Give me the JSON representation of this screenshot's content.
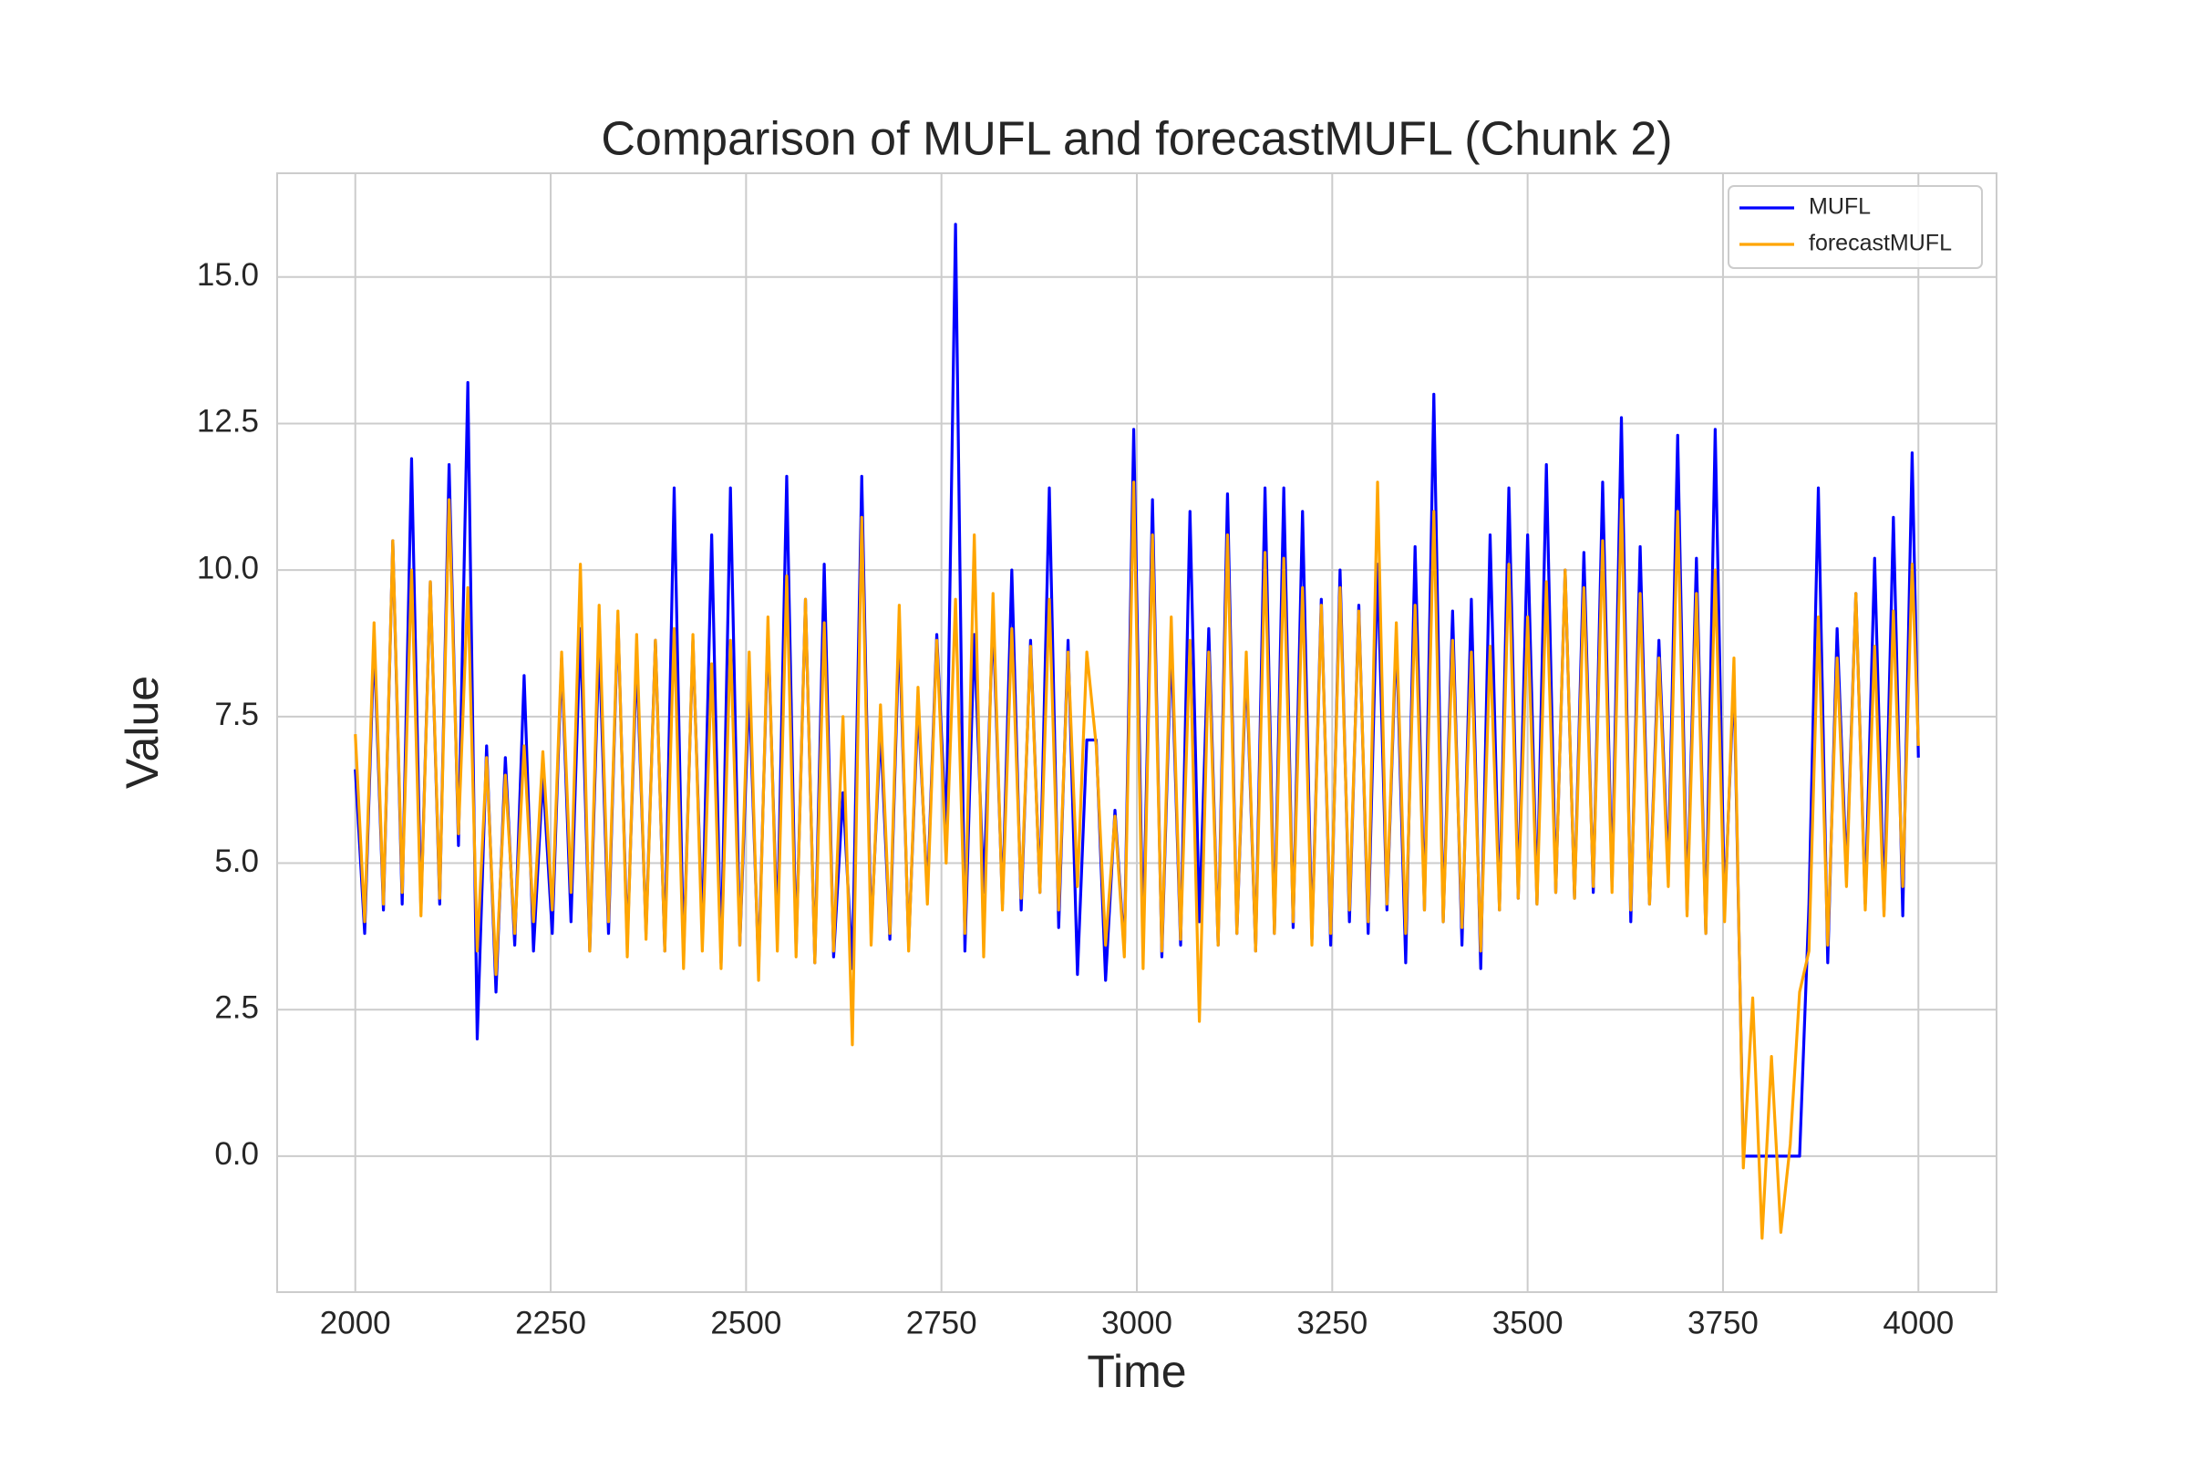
{
  "chart_data": {
    "type": "line",
    "title": "Comparison of MUFL and forecastMUFL (Chunk 2)",
    "x_label": "Time",
    "y_label": "Value",
    "x": [
      2000,
      2012,
      2024,
      2036,
      2048,
      2060,
      2072,
      2084,
      2096,
      2108,
      2120,
      2132,
      2144,
      2156,
      2168,
      2180,
      2192,
      2204,
      2216,
      2228,
      2240,
      2252,
      2264,
      2276,
      2288,
      2300,
      2312,
      2324,
      2336,
      2348,
      2360,
      2372,
      2384,
      2396,
      2408,
      2420,
      2432,
      2444,
      2456,
      2468,
      2480,
      2492,
      2504,
      2516,
      2528,
      2540,
      2552,
      2564,
      2576,
      2588,
      2600,
      2612,
      2624,
      2636,
      2648,
      2660,
      2672,
      2684,
      2696,
      2708,
      2720,
      2732,
      2744,
      2756,
      2768,
      2780,
      2792,
      2804,
      2816,
      2828,
      2840,
      2852,
      2864,
      2876,
      2888,
      2900,
      2912,
      2924,
      2936,
      2948,
      2960,
      2972,
      2984,
      2996,
      3008,
      3020,
      3032,
      3044,
      3056,
      3068,
      3080,
      3092,
      3104,
      3116,
      3128,
      3140,
      3152,
      3164,
      3176,
      3188,
      3200,
      3212,
      3224,
      3236,
      3248,
      3260,
      3272,
      3284,
      3296,
      3308,
      3320,
      3332,
      3344,
      3356,
      3368,
      3380,
      3392,
      3404,
      3416,
      3428,
      3440,
      3452,
      3464,
      3476,
      3488,
      3500,
      3512,
      3524,
      3536,
      3548,
      3560,
      3572,
      3584,
      3596,
      3608,
      3620,
      3632,
      3644,
      3656,
      3668,
      3680,
      3692,
      3704,
      3716,
      3728,
      3740,
      3752,
      3764,
      3776,
      3788,
      3800,
      3812,
      3824,
      3836,
      3848,
      3860,
      3872,
      3884,
      3896,
      3908,
      3920,
      3932,
      3944,
      3956,
      3968,
      3980,
      3992,
      4000
    ],
    "series": [
      {
        "name": "MUFL",
        "color": "#0000ff",
        "values": [
          6.6,
          3.8,
          8.8,
          4.2,
          10.5,
          4.3,
          11.9,
          4.2,
          9.8,
          4.3,
          11.8,
          5.3,
          13.2,
          2.0,
          7.0,
          2.8,
          6.8,
          3.6,
          8.2,
          3.5,
          6.5,
          3.8,
          8.5,
          4.0,
          9.0,
          3.5,
          8.8,
          3.8,
          9.2,
          3.6,
          8.5,
          3.8,
          8.8,
          3.5,
          11.4,
          3.4,
          8.8,
          3.8,
          10.6,
          3.3,
          11.4,
          3.6,
          8.0,
          3.2,
          9.0,
          3.8,
          11.6,
          3.5,
          9.5,
          3.3,
          10.1,
          3.4,
          6.2,
          3.2,
          11.6,
          3.8,
          7.3,
          3.7,
          9.0,
          3.6,
          7.7,
          4.5,
          8.9,
          5.5,
          15.9,
          3.5,
          8.9,
          4.5,
          9.2,
          4.3,
          10.0,
          4.2,
          8.8,
          4.5,
          11.4,
          3.9,
          8.8,
          3.1,
          7.1,
          7.1,
          3.0,
          5.9,
          3.5,
          12.4,
          3.6,
          11.2,
          3.4,
          8.8,
          3.6,
          11.0,
          4.0,
          9.0,
          3.6,
          11.3,
          3.8,
          8.4,
          3.5,
          11.4,
          3.8,
          11.4,
          3.9,
          11.0,
          3.7,
          9.5,
          3.6,
          10.0,
          4.0,
          9.4,
          3.8,
          10.1,
          4.2,
          8.9,
          3.3,
          10.4,
          4.2,
          13.0,
          4.0,
          9.3,
          3.6,
          9.5,
          3.2,
          10.6,
          4.2,
          11.4,
          4.4,
          10.6,
          4.3,
          11.8,
          4.5,
          10.0,
          4.4,
          10.3,
          4.5,
          11.5,
          4.6,
          12.6,
          4.0,
          10.4,
          4.3,
          8.8,
          4.8,
          12.3,
          4.2,
          10.2,
          3.8,
          12.4,
          4.2,
          8.2,
          0.0,
          0.0,
          0.0,
          0.0,
          0.0,
          0.0,
          0.0,
          4.3,
          11.4,
          3.3,
          9.0,
          4.8,
          9.6,
          4.3,
          10.2,
          4.2,
          10.9,
          4.1,
          12.0,
          6.8
        ]
      },
      {
        "name": "forecastMUFL",
        "color": "#ffa500",
        "values": [
          7.2,
          4.0,
          9.1,
          4.3,
          10.5,
          4.5,
          10.0,
          4.1,
          9.8,
          4.4,
          11.2,
          5.5,
          9.7,
          3.5,
          6.8,
          3.1,
          6.5,
          3.8,
          7.0,
          4.0,
          6.9,
          4.2,
          8.6,
          4.5,
          10.1,
          3.5,
          9.4,
          4.0,
          9.3,
          3.4,
          8.9,
          3.7,
          8.8,
          3.5,
          9.0,
          3.2,
          8.9,
          3.5,
          8.4,
          3.2,
          8.8,
          3.6,
          8.6,
          3.0,
          9.2,
          3.5,
          9.9,
          3.4,
          9.5,
          3.3,
          9.1,
          3.5,
          7.5,
          1.9,
          10.9,
          3.6,
          7.7,
          3.8,
          9.4,
          3.5,
          8.0,
          4.3,
          8.8,
          5.0,
          9.5,
          3.8,
          10.6,
          3.4,
          9.6,
          4.2,
          9.0,
          4.4,
          8.7,
          4.5,
          9.5,
          4.2,
          8.6,
          4.6,
          8.6,
          7.0,
          3.6,
          5.8,
          3.4,
          11.5,
          3.2,
          10.6,
          3.5,
          9.2,
          3.7,
          8.8,
          2.3,
          8.6,
          3.6,
          10.6,
          3.8,
          8.6,
          3.5,
          10.3,
          3.8,
          10.2,
          4.0,
          9.7,
          3.6,
          9.4,
          3.8,
          9.7,
          4.2,
          9.3,
          4.0,
          11.5,
          4.3,
          9.1,
          3.8,
          9.4,
          4.2,
          11.0,
          4.0,
          8.8,
          3.9,
          8.6,
          3.5,
          8.7,
          4.2,
          10.1,
          4.4,
          9.2,
          4.3,
          9.8,
          4.5,
          10.0,
          4.4,
          9.7,
          4.6,
          10.5,
          4.5,
          11.2,
          4.2,
          9.6,
          4.3,
          8.5,
          4.6,
          11.0,
          4.1,
          9.6,
          3.8,
          10.0,
          4.0,
          8.5,
          -0.2,
          2.7,
          -1.4,
          1.7,
          -1.3,
          0.2,
          2.8,
          3.5,
          9.2,
          3.6,
          8.5,
          4.6,
          9.6,
          4.2,
          8.7,
          4.1,
          9.3,
          4.6,
          10.1,
          7.0
        ]
      }
    ],
    "xlim": [
      1900,
      4100
    ],
    "ylim": [
      -2.32,
      16.77
    ],
    "xticks": [
      2000,
      2250,
      2500,
      2750,
      3000,
      3250,
      3500,
      3750,
      4000
    ],
    "yticks": [
      {
        "value": 0,
        "label": "0.0"
      },
      2.5,
      {
        "value": 5,
        "label": "5.0"
      },
      7.5,
      {
        "value": 10,
        "label": "10.0"
      },
      12.5,
      {
        "value": 15,
        "label": "15.0"
      }
    ],
    "grid": true,
    "legend": "upper right"
  }
}
